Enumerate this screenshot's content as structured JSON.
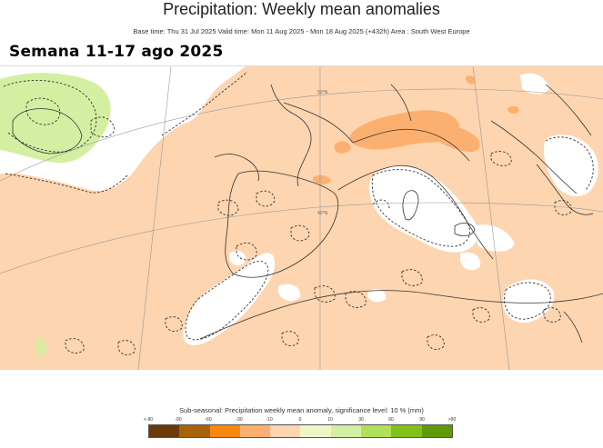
{
  "header": {
    "title": "Precipitation: Weekly mean anomalies",
    "subtitle": "Base time: Thu 31 Jul 2025 Valid time: Mon 11 Aug 2025 - Mon 18 Aug 2025 (+432h) Area : South West Europe"
  },
  "overlay": {
    "week_label": "Semana 11-17  ago 2025"
  },
  "map": {
    "region": "South West Europe",
    "colors": {
      "dry_light": "#fdd5b0",
      "dry_mid": "#fbb070",
      "wet_light": "#d4efa2",
      "land_white": "#ffffff",
      "coast": "#333333"
    },
    "lat_labels": [
      "40°N",
      "50°N"
    ]
  },
  "legend": {
    "caption": "Sub-seasonal: Precipitation weekly mean anomaly, significance level: 10 % (mm)",
    "ticks": [
      "<-90",
      "-90",
      "-60",
      "-30",
      "-10",
      "0",
      "10",
      "30",
      "60",
      "90",
      ">90"
    ],
    "colors": [
      "#6b3a0a",
      "#a8620c",
      "#f7880f",
      "#fbb070",
      "#fdd5b0",
      "#eef6c8",
      "#d4efa2",
      "#b2e05a",
      "#82c117",
      "#5e9a0a",
      "#4c7a08"
    ]
  }
}
